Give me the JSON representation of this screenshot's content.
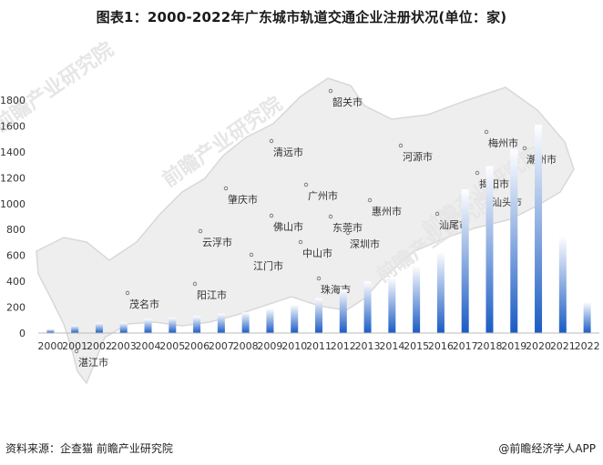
{
  "title": "图表1：2000-2022年广东城市轨道交通企业注册状况(单位：家)",
  "source": "资料来源：企查猫 前瞻产业研究院",
  "credit": "@前瞻经济学人APP",
  "watermark": "前瞻产业研究院",
  "colors": {
    "bar_bottom": "#1a5bc4",
    "bar_top": "#ffffff",
    "axis_text": "#333333",
    "map_fill": "#eeeeee",
    "map_stroke": "#d8d8d8"
  },
  "chart_data": {
    "type": "bar",
    "categories": [
      "2000",
      "2001",
      "2002",
      "2003",
      "2004",
      "2005",
      "2006",
      "2007",
      "2008",
      "2009",
      "2010",
      "2011",
      "2012",
      "2013",
      "2014",
      "2015",
      "2016",
      "2017",
      "2018",
      "2019",
      "2020",
      "2021",
      "2022"
    ],
    "values": [
      30,
      60,
      80,
      80,
      110,
      120,
      130,
      150,
      160,
      190,
      220,
      270,
      340,
      400,
      430,
      520,
      630,
      1110,
      1290,
      1420,
      1610,
      750,
      240
    ],
    "ylim": [
      0,
      1800
    ],
    "yticks": [
      0,
      200,
      400,
      600,
      800,
      1000,
      1200,
      1400,
      1600,
      1800
    ],
    "grid": false,
    "background_map_labels": [
      "韶关市",
      "清远市",
      "梅州市",
      "潮州市",
      "河源市",
      "肇庆市",
      "广州市",
      "揭阳市",
      "汕头市",
      "佛山市",
      "东莞市",
      "惠州市",
      "汕尾市",
      "云浮市",
      "中山市",
      "深圳市",
      "江门市",
      "珠海市",
      "阳江市",
      "茂名市",
      "湛江市"
    ]
  }
}
